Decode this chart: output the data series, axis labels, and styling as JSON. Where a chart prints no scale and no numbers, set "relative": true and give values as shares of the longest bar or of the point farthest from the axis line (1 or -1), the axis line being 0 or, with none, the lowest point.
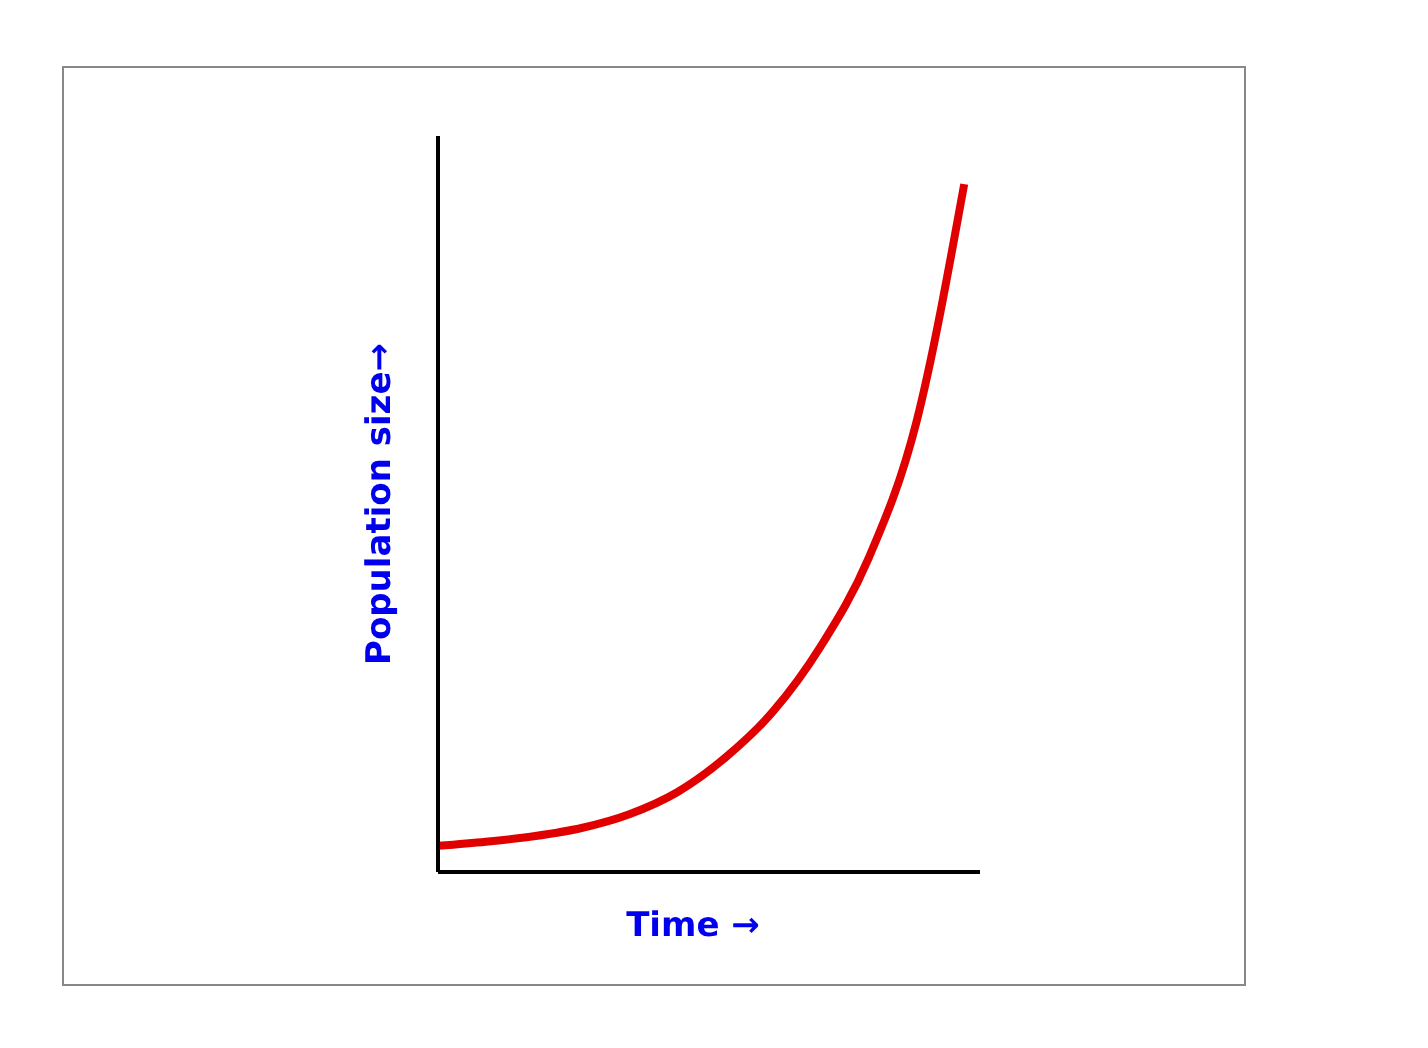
{
  "chart_data": {
    "type": "line",
    "xlabel": "Time →",
    "ylabel": "Population size→",
    "relative": true,
    "categories": [
      null,
      null,
      null,
      null,
      null,
      null,
      null,
      null,
      null,
      null,
      null,
      null
    ],
    "series": [
      {
        "color": "#e00000",
        "values": [
          0.038,
          0.044,
          0.052,
          0.064,
          0.084,
          0.116,
          0.166,
          0.233,
          0.328,
          0.456,
          0.654,
          1
        ]
      }
    ],
    "grid": false,
    "legend": false,
    "marker": "none",
    "line_style": "solid"
  }
}
